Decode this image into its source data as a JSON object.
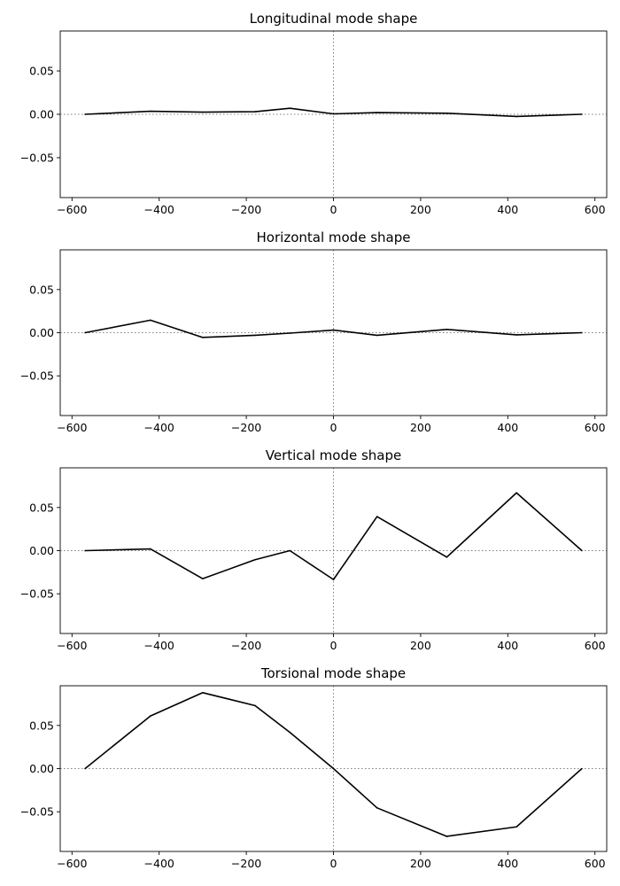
{
  "chart_data": [
    {
      "type": "line",
      "title": "Longitudinal mode shape",
      "xlabel": "",
      "ylabel": "",
      "x": [
        -570,
        -420,
        -300,
        -180,
        -100,
        0,
        100,
        260,
        420,
        570
      ],
      "series": [
        {
          "values": [
            0.0,
            0.0035,
            0.0025,
            0.003,
            0.007,
            0.0005,
            0.002,
            0.0012,
            -0.0025,
            0.0
          ]
        }
      ],
      "xlim": [
        -627,
        627
      ],
      "ylim": [
        -0.096,
        0.096
      ],
      "xticks": [
        -600,
        -400,
        -200,
        0,
        200,
        400,
        600
      ],
      "xtick_labels": [
        "−600",
        "−400",
        "−200",
        "0",
        "200",
        "400",
        "600"
      ],
      "yticks": [
        0.05,
        0.0,
        -0.05
      ],
      "ytick_labels": [
        "0.05",
        "0.00",
        "−0.05"
      ],
      "reference_lines": "dotted gray lines at x=0 and y=0",
      "grid": false,
      "line_color": "#000000"
    },
    {
      "type": "line",
      "title": "Horizontal mode shape",
      "xlabel": "",
      "ylabel": "",
      "x": [
        -570,
        -420,
        -300,
        -180,
        -100,
        0,
        100,
        260,
        420,
        570
      ],
      "series": [
        {
          "values": [
            0.0,
            0.0145,
            -0.0055,
            -0.003,
            -0.0005,
            0.003,
            -0.003,
            0.0038,
            -0.0025,
            0.0
          ]
        }
      ],
      "xlim": [
        -627,
        627
      ],
      "ylim": [
        -0.096,
        0.096
      ],
      "xticks": [
        -600,
        -400,
        -200,
        0,
        200,
        400,
        600
      ],
      "xtick_labels": [
        "−600",
        "−400",
        "−200",
        "0",
        "200",
        "400",
        "600"
      ],
      "yticks": [
        0.05,
        0.0,
        -0.05
      ],
      "ytick_labels": [
        "0.05",
        "0.00",
        "−0.05"
      ],
      "reference_lines": "dotted gray lines at x=0 and y=0",
      "grid": false,
      "line_color": "#000000"
    },
    {
      "type": "line",
      "title": "Vertical mode shape",
      "xlabel": "",
      "ylabel": "",
      "x": [
        -570,
        -420,
        -300,
        -180,
        -100,
        0,
        100,
        260,
        420,
        570
      ],
      "series": [
        {
          "values": [
            0.0,
            0.002,
            -0.0325,
            -0.0105,
            0.0,
            -0.0335,
            0.0395,
            -0.0075,
            0.067,
            0.0
          ]
        }
      ],
      "xlim": [
        -627,
        627
      ],
      "ylim": [
        -0.096,
        0.096
      ],
      "xticks": [
        -600,
        -400,
        -200,
        0,
        200,
        400,
        600
      ],
      "xtick_labels": [
        "−600",
        "−400",
        "−200",
        "0",
        "200",
        "400",
        "600"
      ],
      "yticks": [
        0.05,
        0.0,
        -0.05
      ],
      "ytick_labels": [
        "0.05",
        "0.00",
        "−0.05"
      ],
      "reference_lines": "dotted gray lines at x=0 and y=0",
      "grid": false,
      "line_color": "#000000"
    },
    {
      "type": "line",
      "title": "Torsional mode shape",
      "xlabel": "",
      "ylabel": "",
      "x": [
        -570,
        -420,
        -300,
        -180,
        -100,
        0,
        100,
        260,
        420,
        570
      ],
      "series": [
        {
          "values": [
            0.0,
            0.061,
            0.088,
            0.073,
            0.042,
            0.0,
            -0.0455,
            -0.0785,
            -0.0675,
            0.0
          ]
        }
      ],
      "xlim": [
        -627,
        627
      ],
      "ylim": [
        -0.096,
        0.096
      ],
      "xticks": [
        -600,
        -400,
        -200,
        0,
        200,
        400,
        600
      ],
      "xtick_labels": [
        "−600",
        "−400",
        "−200",
        "0",
        "200",
        "400",
        "600"
      ],
      "yticks": [
        0.05,
        0.0,
        -0.05
      ],
      "ytick_labels": [
        "0.05",
        "0.00",
        "−0.05"
      ],
      "reference_lines": "dotted gray lines at x=0 and y=0",
      "grid": false,
      "line_color": "#000000"
    }
  ]
}
